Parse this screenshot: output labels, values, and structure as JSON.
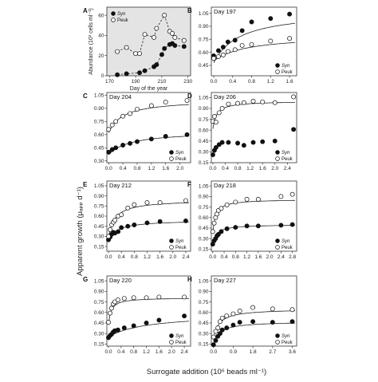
{
  "figure": {
    "ylabel": "Apparent growth (μₐₚₚ d⁻¹)",
    "xlabel": "Surrogate addition (10⁶ beads ml⁻¹)"
  },
  "colors": {
    "syn": "#111111",
    "peuk": "#ffffff",
    "panelA_bg": "#e4e4e4"
  },
  "chart_data": [
    {
      "id": "A",
      "type": "line",
      "letter": "A",
      "xlabel": "Day of the year",
      "ylabel": "Abundance (10³ cells ml⁻¹)",
      "xlim": [
        168,
        232
      ],
      "ylim": [
        0,
        68
      ],
      "xticks": [
        170,
        190,
        210,
        230
      ],
      "yticks": [
        0,
        20,
        40,
        60
      ],
      "series": [
        {
          "name": "Syn",
          "filled": true,
          "x": [
            176,
            183,
            193,
            197,
            204,
            206,
            210,
            212,
            216,
            218,
            220,
            227
          ],
          "y": [
            1,
            2,
            3,
            5,
            9,
            11,
            21,
            27,
            31,
            32,
            30,
            29
          ]
        },
        {
          "name": "Peuk",
          "filled": false,
          "x": [
            176,
            183,
            190,
            193,
            197,
            204,
            206,
            212,
            216,
            218,
            220,
            227
          ],
          "y": [
            24,
            28,
            22,
            22,
            41,
            38,
            47,
            60,
            44,
            42,
            38,
            35
          ]
        }
      ]
    },
    {
      "id": "B",
      "type": "scatter",
      "letter": "B",
      "title": "Day 197",
      "xlim": [
        -0.05,
        1.75
      ],
      "ylim": [
        0.33,
        1.12
      ],
      "xticks": [
        0.0,
        0.4,
        0.8,
        1.2,
        1.6
      ],
      "yticks": [
        0.45,
        0.6,
        0.75,
        0.9,
        1.05
      ],
      "series": [
        {
          "name": "Syn",
          "filled": true,
          "x": [
            0,
            0.1,
            0.2,
            0.3,
            0.45,
            0.6,
            0.8,
            1.2,
            1.6
          ],
          "y": [
            0.56,
            0.62,
            0.66,
            0.72,
            0.74,
            0.85,
            0.95,
            0.99,
            1.04
          ]
        },
        {
          "name": "Peuk",
          "filled": false,
          "x": [
            0,
            0.1,
            0.2,
            0.3,
            0.45,
            0.6,
            0.8,
            1.2,
            1.6
          ],
          "y": [
            0.53,
            0.55,
            0.57,
            0.61,
            0.63,
            0.68,
            0.69,
            0.73,
            0.76
          ]
        }
      ],
      "fits": [
        {
          "vmax": 1.08,
          "ks": 0.55,
          "base": 0.48
        },
        {
          "vmax": 0.8,
          "ks": 0.7,
          "base": 0.5
        }
      ]
    },
    {
      "id": "C",
      "type": "scatter",
      "letter": "C",
      "title": "Day 204",
      "xlim": [
        -0.05,
        2.3
      ],
      "ylim": [
        0.28,
        1.08
      ],
      "xticks": [
        0.0,
        0.4,
        0.8,
        1.2,
        1.6,
        2.0
      ],
      "yticks": [
        0.3,
        0.45,
        0.6,
        0.75,
        0.9,
        1.05
      ],
      "series": [
        {
          "name": "Syn",
          "filled": true,
          "x": [
            0,
            0.1,
            0.2,
            0.4,
            0.6,
            0.8,
            1.2,
            1.6,
            2.2
          ],
          "y": [
            0.4,
            0.43,
            0.45,
            0.48,
            0.5,
            0.52,
            0.55,
            0.58,
            0.6
          ]
        },
        {
          "name": "Peuk",
          "filled": false,
          "x": [
            0,
            0.1,
            0.2,
            0.4,
            0.6,
            0.8,
            1.2,
            1.6,
            2.2
          ],
          "y": [
            0.66,
            0.71,
            0.75,
            0.81,
            0.84,
            0.89,
            0.93,
            0.97,
            0.99
          ]
        }
      ],
      "fits": [
        {
          "vmax": 0.64,
          "ks": 0.6,
          "base": 0.37
        },
        {
          "vmax": 1.0,
          "ks": 0.4,
          "base": 0.62
        }
      ]
    },
    {
      "id": "D",
      "type": "scatter",
      "letter": "D",
      "title": "Day 206",
      "xlim": [
        -0.05,
        2.7
      ],
      "ylim": [
        0.15,
        1.12
      ],
      "xticks": [
        0.0,
        0.4,
        0.8,
        1.2,
        1.6,
        2.0,
        2.4
      ],
      "yticks": [
        0.15,
        0.3,
        0.45,
        0.6,
        0.75,
        0.9,
        1.05
      ],
      "series": [
        {
          "name": "Syn",
          "filled": true,
          "x": [
            0,
            0.05,
            0.1,
            0.2,
            0.3,
            0.5,
            0.8,
            1.0,
            1.3,
            1.6,
            2.0,
            2.6
          ],
          "y": [
            0.26,
            0.32,
            0.36,
            0.4,
            0.43,
            0.43,
            0.42,
            0.39,
            0.43,
            0.44,
            0.45,
            0.61
          ]
        },
        {
          "name": "Peuk",
          "filled": false,
          "x": [
            0,
            0.05,
            0.1,
            0.2,
            0.3,
            0.5,
            0.8,
            1.0,
            1.3,
            1.6,
            2.0,
            2.6
          ],
          "y": [
            0.72,
            0.79,
            0.71,
            0.84,
            0.9,
            0.96,
            0.97,
            0.98,
            1.0,
            0.99,
            0.98,
            1.06
          ]
        }
      ],
      "fits": [
        {
          "vmax": 1.0,
          "ks": 0.12,
          "base": 0.62
        }
      ]
    },
    {
      "id": "E",
      "type": "scatter",
      "letter": "E",
      "title": "Day 212",
      "xlim": [
        -0.05,
        2.55
      ],
      "ylim": [
        0.08,
        1.12
      ],
      "xticks": [
        0.0,
        0.4,
        0.8,
        1.2,
        1.6,
        2.0,
        2.4
      ],
      "yticks": [
        0.15,
        0.3,
        0.45,
        0.6,
        0.75,
        0.9,
        1.05
      ],
      "series": [
        {
          "name": "Syn",
          "filled": true,
          "x": [
            0,
            0.05,
            0.1,
            0.15,
            0.2,
            0.3,
            0.4,
            0.6,
            0.8,
            1.2,
            1.6,
            2.4
          ],
          "y": [
            0.25,
            0.29,
            0.33,
            0.36,
            0.35,
            0.37,
            0.43,
            0.45,
            0.47,
            0.5,
            0.52,
            0.53
          ]
        },
        {
          "name": "Peuk",
          "filled": false,
          "x": [
            0,
            0.05,
            0.1,
            0.15,
            0.2,
            0.3,
            0.4,
            0.6,
            0.8,
            1.2,
            1.6,
            2.4
          ],
          "y": [
            0.3,
            0.4,
            0.47,
            0.51,
            0.54,
            0.6,
            0.62,
            0.72,
            0.77,
            0.8,
            0.8,
            0.83
          ]
        }
      ],
      "fits": [
        {
          "vmax": 0.54,
          "ks": 0.25,
          "base": 0.22
        },
        {
          "vmax": 0.84,
          "ks": 0.2,
          "base": 0.28
        }
      ]
    },
    {
      "id": "F",
      "type": "scatter",
      "letter": "F",
      "title": "Day 218",
      "xlim": [
        -0.05,
        2.95
      ],
      "ylim": [
        0.12,
        1.12
      ],
      "xticks": [
        0.0,
        0.4,
        0.8,
        1.2,
        1.6,
        2.0,
        2.4,
        2.8
      ],
      "yticks": [
        0.15,
        0.3,
        0.45,
        0.6,
        0.75,
        0.9,
        1.05
      ],
      "series": [
        {
          "name": "Syn",
          "filled": true,
          "x": [
            0,
            0.05,
            0.1,
            0.15,
            0.2,
            0.3,
            0.5,
            0.8,
            1.2,
            1.6,
            2.4,
            2.8
          ],
          "y": [
            0.22,
            0.27,
            0.3,
            0.34,
            0.36,
            0.4,
            0.44,
            0.46,
            0.48,
            0.48,
            0.49,
            0.5
          ]
        },
        {
          "name": "Peuk",
          "filled": false,
          "x": [
            0,
            0.05,
            0.1,
            0.15,
            0.2,
            0.3,
            0.5,
            0.8,
            1.2,
            1.6,
            2.4,
            2.8
          ],
          "y": [
            0.4,
            0.52,
            0.6,
            0.65,
            0.7,
            0.73,
            0.78,
            0.82,
            0.86,
            0.86,
            0.9,
            0.93
          ]
        }
      ],
      "fits": [
        {
          "vmax": 0.5,
          "ks": 0.12,
          "base": 0.2
        },
        {
          "vmax": 0.86,
          "ks": 0.1,
          "base": 0.38
        }
      ]
    },
    {
      "id": "G",
      "type": "scatter",
      "letter": "G",
      "title": "Day 220",
      "xlim": [
        -0.05,
        2.6
      ],
      "ylim": [
        0.12,
        1.12
      ],
      "xticks": [
        0.0,
        0.4,
        0.8,
        1.2,
        1.6,
        2.0,
        2.4
      ],
      "yticks": [
        0.15,
        0.3,
        0.45,
        0.6,
        0.75,
        0.9,
        1.05
      ],
      "series": [
        {
          "name": "Syn",
          "filled": true,
          "x": [
            0,
            0.05,
            0.1,
            0.15,
            0.2,
            0.3,
            0.5,
            0.8,
            1.2,
            1.6,
            2.4
          ],
          "y": [
            0.24,
            0.27,
            0.29,
            0.32,
            0.34,
            0.35,
            0.38,
            0.41,
            0.45,
            0.49,
            0.55
          ]
        },
        {
          "name": "Peuk",
          "filled": false,
          "x": [
            0,
            0.05,
            0.1,
            0.15,
            0.2,
            0.3,
            0.5,
            0.8,
            1.2,
            1.6,
            2.4
          ],
          "y": [
            0.46,
            0.59,
            0.66,
            0.72,
            0.75,
            0.78,
            0.8,
            0.81,
            0.81,
            0.82,
            0.82
          ]
        }
      ],
      "fits": [
        {
          "vmax": 0.58,
          "ks": 1.2,
          "base": 0.25
        },
        {
          "vmax": 0.81,
          "ks": 0.08,
          "base": 0.42
        }
      ]
    },
    {
      "id": "H",
      "type": "scatter",
      "letter": "H",
      "title": "Day 227",
      "xlim": [
        -0.1,
        3.8
      ],
      "ylim": [
        0.12,
        1.12
      ],
      "xticks": [
        0.0,
        0.9,
        1.8,
        2.7,
        3.6
      ],
      "yticks": [
        0.15,
        0.3,
        0.45,
        0.6,
        0.75,
        0.9,
        1.05
      ],
      "series": [
        {
          "name": "Syn",
          "filled": true,
          "x": [
            0,
            0.1,
            0.2,
            0.3,
            0.4,
            0.6,
            0.9,
            1.2,
            1.8,
            2.7,
            3.6
          ],
          "y": [
            0.14,
            0.2,
            0.26,
            0.3,
            0.35,
            0.38,
            0.42,
            0.46,
            0.47,
            0.46,
            0.47
          ]
        },
        {
          "name": "Peuk",
          "filled": false,
          "x": [
            0,
            0.1,
            0.2,
            0.3,
            0.4,
            0.6,
            0.9,
            1.2,
            1.8,
            2.7,
            3.6
          ],
          "y": [
            0.25,
            0.33,
            0.38,
            0.47,
            0.52,
            0.55,
            0.58,
            0.62,
            0.67,
            0.65,
            0.64
          ]
        }
      ],
      "fits": [
        {
          "vmax": 0.47,
          "ks": 0.25,
          "base": 0.12
        },
        {
          "vmax": 0.65,
          "ks": 0.25,
          "base": 0.22
        }
      ]
    }
  ]
}
